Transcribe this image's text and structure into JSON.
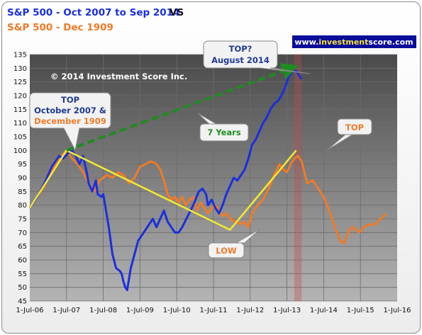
{
  "chart_data": {
    "type": "line",
    "title_line1": "S&P 500  - Oct 2007 to Sep 2014",
    "title_vs": "VS",
    "title_line2": "S&P 500  - Dec 1909",
    "brand": "www.investmentscore.com",
    "brand_parts": {
      "a": "www.",
      "b": "investment",
      "c": "score",
      "d": ".com"
    },
    "copyright": "© 2014 Investment Score Inc.",
    "x_ticks": [
      "1-Jul-06",
      "1-Jul-07",
      "1-Jul-08",
      "1-Jul-09",
      "1-Jul-10",
      "1-Jul-11",
      "1-Jul-12",
      "1-Jul-13",
      "1-Jul-14",
      "1-Jul-15",
      "1-Jul-16"
    ],
    "y_ticks": [
      45,
      50,
      55,
      60,
      65,
      70,
      75,
      80,
      85,
      90,
      95,
      100,
      105,
      110,
      115,
      120,
      125,
      130,
      135
    ],
    "ylim": [
      45,
      135
    ],
    "grid": true,
    "colors": {
      "plot_bg_top": "#4a4a4a",
      "plot_bg_bottom": "#b4b4b4",
      "blue": "#1a2fe0",
      "orange": "#f07a28",
      "yellow": "#f5ea2a",
      "green": "#1f8c1f",
      "callout_text": "#1f3a96",
      "callout_orange": "#f07a28"
    },
    "series": [
      {
        "color": "#1a2fe0",
        "points": [
          [
            0.0,
            79
          ],
          [
            0.2,
            83
          ],
          [
            0.4,
            88
          ],
          [
            0.6,
            94
          ],
          [
            0.8,
            98
          ],
          [
            0.9,
            97
          ],
          [
            1.05,
            99
          ],
          [
            1.15,
            100
          ],
          [
            1.25,
            98
          ],
          [
            1.35,
            95
          ],
          [
            1.45,
            98
          ],
          [
            1.55,
            92
          ],
          [
            1.6,
            88
          ],
          [
            1.7,
            85
          ],
          [
            1.8,
            89
          ],
          [
            1.85,
            84
          ],
          [
            1.95,
            83
          ],
          [
            2.0,
            84
          ],
          [
            2.05,
            80
          ],
          [
            2.15,
            72
          ],
          [
            2.25,
            62
          ],
          [
            2.35,
            57
          ],
          [
            2.45,
            56
          ],
          [
            2.5,
            55
          ],
          [
            2.55,
            52
          ],
          [
            2.6,
            50
          ],
          [
            2.65,
            49
          ],
          [
            2.75,
            57
          ],
          [
            2.85,
            62
          ],
          [
            2.95,
            67
          ],
          [
            3.05,
            69
          ],
          [
            3.15,
            71
          ],
          [
            3.25,
            73
          ],
          [
            3.35,
            75
          ],
          [
            3.45,
            72
          ],
          [
            3.55,
            75
          ],
          [
            3.65,
            78
          ],
          [
            3.75,
            74
          ],
          [
            3.85,
            72
          ],
          [
            3.95,
            70
          ],
          [
            4.05,
            70
          ],
          [
            4.15,
            72
          ],
          [
            4.3,
            76
          ],
          [
            4.45,
            80
          ],
          [
            4.6,
            85
          ],
          [
            4.7,
            86
          ],
          [
            4.75,
            85
          ],
          [
            4.8,
            84
          ],
          [
            4.85,
            80
          ],
          [
            4.95,
            82
          ],
          [
            5.05,
            79
          ],
          [
            5.15,
            77
          ],
          [
            5.25,
            80
          ],
          [
            5.35,
            84
          ],
          [
            5.45,
            87
          ],
          [
            5.55,
            90
          ],
          [
            5.65,
            89
          ],
          [
            5.7,
            90
          ],
          [
            5.85,
            93
          ],
          [
            5.95,
            97
          ],
          [
            6.05,
            102
          ],
          [
            6.15,
            104
          ],
          [
            6.25,
            107
          ],
          [
            6.35,
            110
          ],
          [
            6.45,
            112
          ],
          [
            6.55,
            115
          ],
          [
            6.65,
            117
          ],
          [
            6.75,
            118
          ],
          [
            6.85,
            120
          ],
          [
            6.95,
            123
          ],
          [
            7.05,
            127
          ],
          [
            7.15,
            129
          ],
          [
            7.25,
            129
          ],
          [
            7.35,
            127
          ],
          [
            7.4,
            126
          ]
        ]
      },
      {
        "color": "#f07a28",
        "points": [
          [
            0.0,
            79
          ],
          [
            0.2,
            83
          ],
          [
            0.4,
            87
          ],
          [
            0.6,
            93
          ],
          [
            0.8,
            97
          ],
          [
            1.0,
            100
          ],
          [
            1.15,
            97
          ],
          [
            1.3,
            95
          ],
          [
            1.45,
            92
          ],
          [
            1.6,
            88
          ],
          [
            1.75,
            85
          ],
          [
            1.9,
            89
          ],
          [
            2.0,
            90
          ],
          [
            2.1,
            91
          ],
          [
            2.25,
            90
          ],
          [
            2.4,
            92
          ],
          [
            2.55,
            91
          ],
          [
            2.7,
            88
          ],
          [
            2.85,
            90
          ],
          [
            3.0,
            94
          ],
          [
            3.15,
            95
          ],
          [
            3.3,
            96
          ],
          [
            3.45,
            95
          ],
          [
            3.55,
            93
          ],
          [
            3.65,
            89
          ],
          [
            3.75,
            84
          ],
          [
            3.85,
            82
          ],
          [
            3.95,
            83
          ],
          [
            4.05,
            81
          ],
          [
            4.15,
            83
          ],
          [
            4.25,
            80
          ],
          [
            4.35,
            82
          ],
          [
            4.45,
            83
          ],
          [
            4.55,
            78
          ],
          [
            4.65,
            81
          ],
          [
            4.75,
            79
          ],
          [
            4.85,
            77
          ],
          [
            4.95,
            79
          ],
          [
            5.05,
            80
          ],
          [
            5.15,
            78
          ],
          [
            5.25,
            76
          ],
          [
            5.35,
            77
          ],
          [
            5.45,
            75
          ],
          [
            5.6,
            74
          ],
          [
            5.75,
            73
          ],
          [
            5.85,
            74
          ],
          [
            5.95,
            72
          ],
          [
            6.05,
            77
          ],
          [
            6.2,
            80
          ],
          [
            6.35,
            82
          ],
          [
            6.5,
            86
          ],
          [
            6.65,
            91
          ],
          [
            6.8,
            95
          ],
          [
            6.9,
            93
          ],
          [
            7.0,
            92
          ],
          [
            7.1,
            95
          ],
          [
            7.2,
            97
          ],
          [
            7.3,
            98
          ],
          [
            7.4,
            96
          ],
          [
            7.55,
            88
          ],
          [
            7.7,
            89
          ],
          [
            7.85,
            86
          ],
          [
            8.0,
            83
          ],
          [
            8.15,
            78
          ],
          [
            8.3,
            72
          ],
          [
            8.45,
            67
          ],
          [
            8.55,
            66
          ],
          [
            8.7,
            71
          ],
          [
            8.8,
            72
          ],
          [
            8.95,
            70
          ],
          [
            9.1,
            72
          ],
          [
            9.25,
            73
          ],
          [
            9.4,
            73
          ],
          [
            9.55,
            75
          ],
          [
            9.7,
            77
          ]
        ]
      }
    ],
    "annotations": {
      "top_left": [
        "TOP",
        "October 2007 &",
        "December 1909"
      ],
      "top_right": [
        "TOP?",
        "August 2014"
      ],
      "years": "7 Years",
      "low": "LOW",
      "top2": "TOP"
    }
  }
}
